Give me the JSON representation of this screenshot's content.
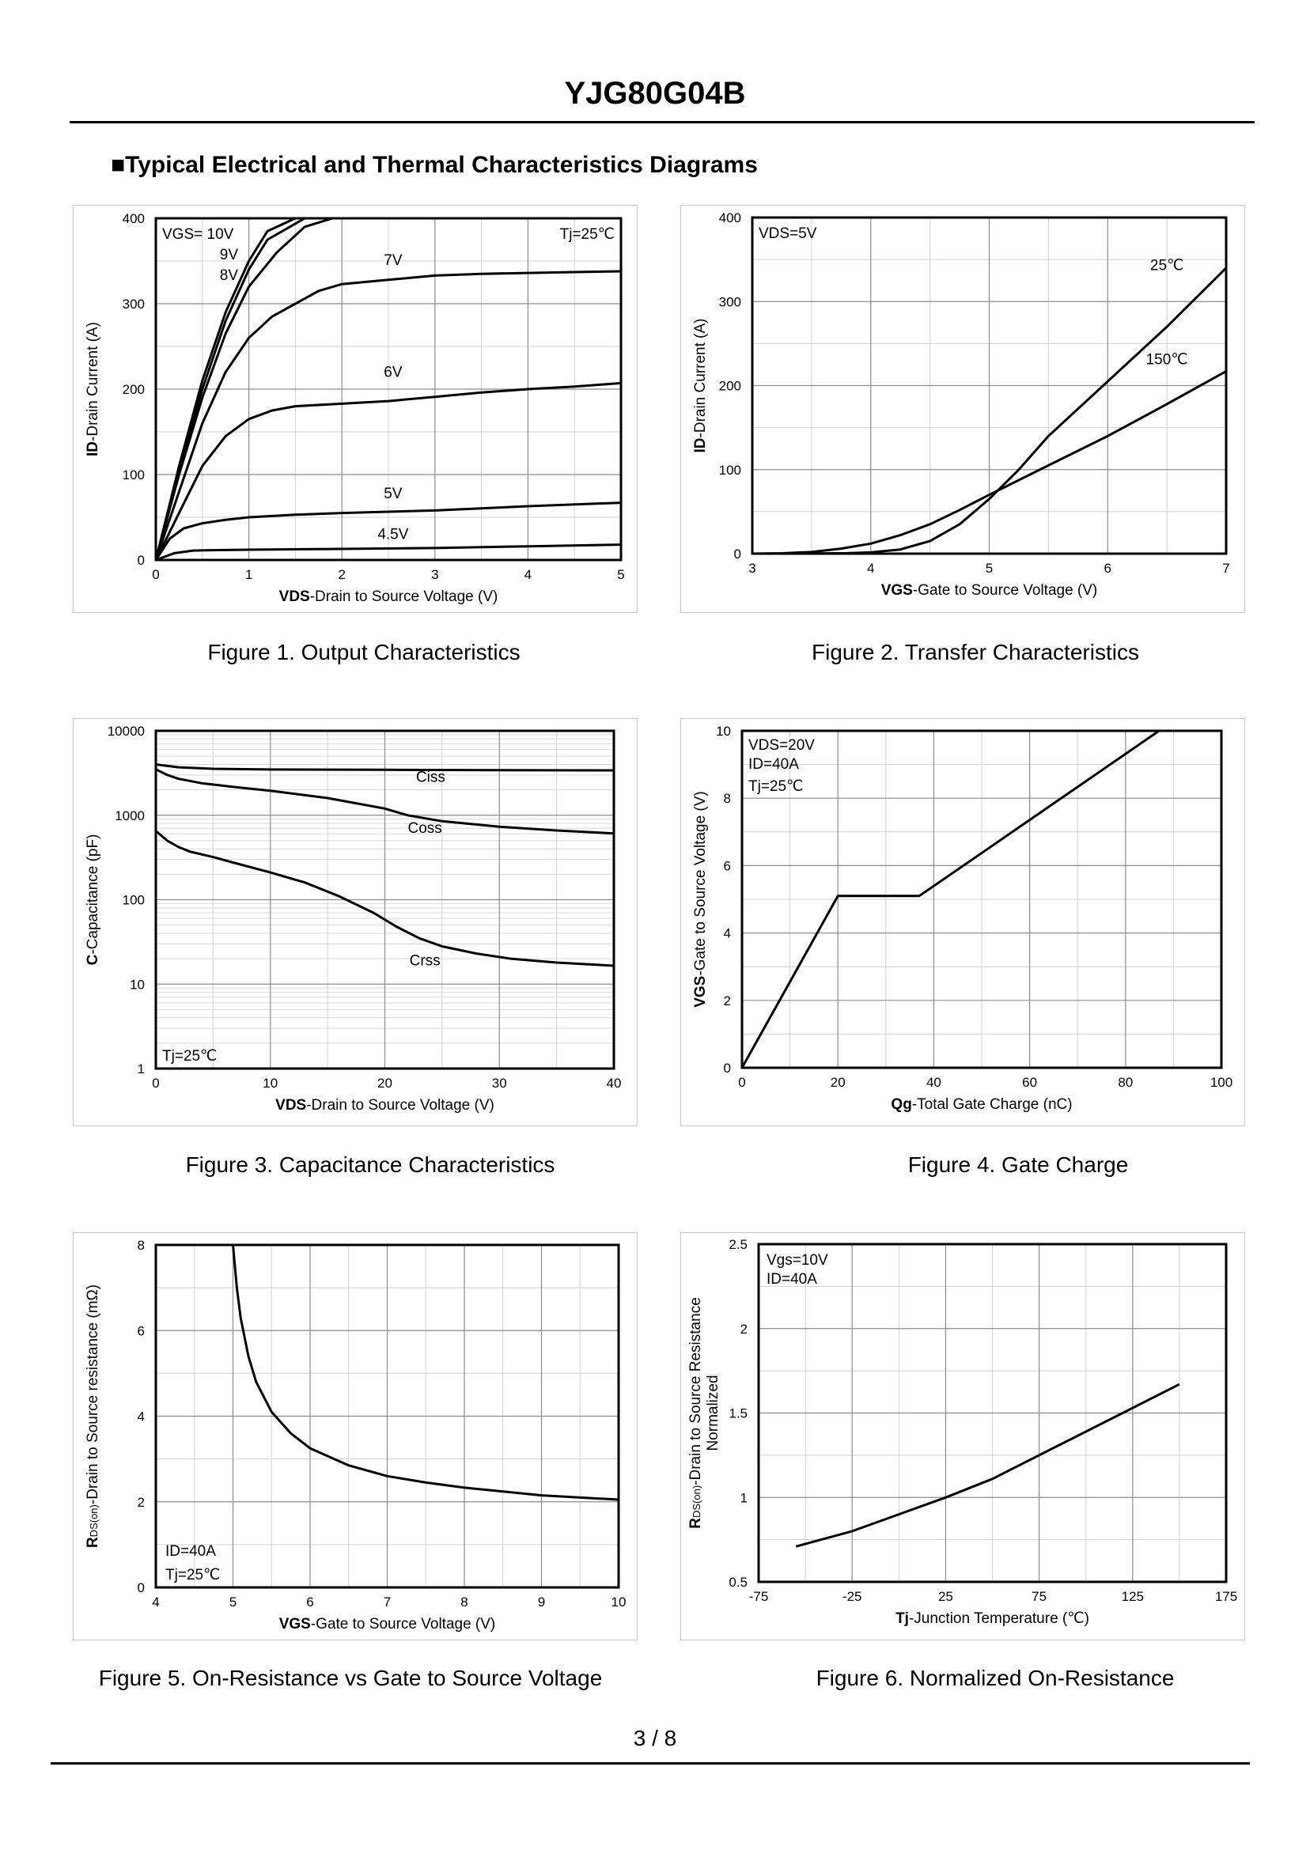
{
  "header": {
    "title": "YJG80G04B",
    "section": "■Typical Electrical and Thermal Characteristics Diagrams"
  },
  "footer": {
    "page": "3 / 8"
  },
  "chart_data": [
    {
      "id": "fig1",
      "type": "line",
      "scale": "linear",
      "caption": "Figure 1.  Output Characteristics",
      "xlabel_bold": "VDS",
      "xlabel_rest": "-Drain to Source Voltage (V)",
      "ylabel_bold": "ID",
      "ylabel_rest": "-Drain Current  (A)",
      "xlim": [
        0,
        5
      ],
      "ylim": [
        0,
        400
      ],
      "xticks": [
        0,
        1,
        2,
        3,
        4,
        5
      ],
      "yticks": [
        0,
        100,
        200,
        300,
        400
      ],
      "annotations": [
        "VGS= 10V",
        "9V",
        "8V",
        "Tj=25℃"
      ],
      "series": [
        {
          "name": "10V",
          "x": [
            0,
            0.25,
            0.5,
            0.75,
            1.0,
            1.2,
            1.5
          ],
          "y": [
            0,
            110,
            210,
            290,
            350,
            385,
            400
          ]
        },
        {
          "name": "9V",
          "x": [
            0,
            0.25,
            0.5,
            0.75,
            1.0,
            1.2,
            1.6
          ],
          "y": [
            0,
            105,
            200,
            280,
            340,
            375,
            400
          ]
        },
        {
          "name": "8V",
          "x": [
            0,
            0.25,
            0.5,
            0.75,
            1.0,
            1.3,
            1.6,
            1.9
          ],
          "y": [
            0,
            100,
            190,
            265,
            320,
            360,
            390,
            400
          ]
        },
        {
          "name": "7V",
          "label": "7V",
          "labelAt": [
            2.55,
            338
          ],
          "x": [
            0,
            0.25,
            0.5,
            0.75,
            1.0,
            1.25,
            1.5,
            1.75,
            2.0,
            2.5,
            3.0,
            3.5,
            4.0,
            4.5,
            5.0
          ],
          "y": [
            0,
            80,
            160,
            220,
            260,
            285,
            300,
            315,
            323,
            328,
            333,
            335,
            336,
            337,
            338
          ]
        },
        {
          "name": "6V",
          "label": "6V",
          "labelAt": [
            2.55,
            207
          ],
          "x": [
            0,
            0.25,
            0.5,
            0.75,
            1.0,
            1.25,
            1.5,
            2.0,
            2.5,
            3.0,
            3.5,
            4.0,
            4.5,
            5.0
          ],
          "y": [
            0,
            55,
            110,
            145,
            165,
            175,
            180,
            183,
            186,
            191,
            196,
            200,
            203,
            207
          ]
        },
        {
          "name": "5V",
          "label": "5V",
          "labelAt": [
            2.55,
            65
          ],
          "x": [
            0,
            0.15,
            0.3,
            0.5,
            0.75,
            1.0,
            1.5,
            2.0,
            3.0,
            4.0,
            5.0
          ],
          "y": [
            0,
            25,
            37,
            43,
            47,
            50,
            53,
            55,
            58,
            63,
            67
          ]
        },
        {
          "name": "4.5V",
          "label": "4.5V",
          "labelAt": [
            2.55,
            17
          ],
          "x": [
            0,
            0.2,
            0.4,
            0.6,
            1.0,
            2.0,
            3.0,
            4.0,
            5.0
          ],
          "y": [
            0,
            8,
            11,
            11.5,
            12,
            13,
            14,
            16,
            18
          ]
        }
      ]
    },
    {
      "id": "fig2",
      "type": "line",
      "scale": "linear",
      "caption": "Figure 2.  Transfer Characteristics",
      "xlabel_bold": "VGS",
      "xlabel_rest": "-Gate to Source Voltage (V)",
      "ylabel_bold": "ID",
      "ylabel_rest": "-Drain Current  (A)",
      "xlim": [
        3,
        7
      ],
      "ylim": [
        0,
        400
      ],
      "xticks": [
        3,
        4,
        5,
        6,
        7
      ],
      "yticks": [
        0,
        100,
        200,
        300,
        400
      ],
      "annotations": [
        "VDS=5V"
      ],
      "series": [
        {
          "name": "25℃",
          "label": "25℃",
          "labelAt": [
            6.5,
            330
          ],
          "x": [
            3,
            3.5,
            3.8,
            4.0,
            4.25,
            4.5,
            4.75,
            5.0,
            5.25,
            5.5,
            6.0,
            6.5,
            7.0
          ],
          "y": [
            0,
            0.2,
            0.6,
            1.5,
            5,
            15,
            35,
            65,
            100,
            140,
            205,
            270,
            340
          ]
        },
        {
          "name": "150℃",
          "label": "150℃",
          "labelAt": [
            6.5,
            218
          ],
          "x": [
            3,
            3.25,
            3.5,
            3.75,
            4.0,
            4.25,
            4.5,
            4.75,
            5.0,
            5.5,
            6.0,
            6.5,
            7.0
          ],
          "y": [
            0,
            0.5,
            2,
            6,
            12,
            22,
            35,
            52,
            70,
            105,
            140,
            178,
            217
          ]
        }
      ]
    },
    {
      "id": "fig3",
      "type": "line",
      "scale": "log-y",
      "caption": "Figure 3.  Capacitance Characteristics",
      "xlabel_bold": "VDS",
      "xlabel_rest": "-Drain to Source Voltage (V)",
      "ylabel_bold": "C",
      "ylabel_rest": "-Capacitance (pF)",
      "xlim": [
        0,
        40
      ],
      "ylim": [
        1,
        10000
      ],
      "xticks": [
        0,
        10,
        20,
        30,
        40
      ],
      "yticks": [
        1,
        10,
        100,
        1000,
        10000
      ],
      "annotations": [
        "Tj=25℃"
      ],
      "series": [
        {
          "name": "Ciss",
          "label": "Ciss",
          "labelAt": [
            24,
            2100
          ],
          "x": [
            0,
            2,
            5,
            10,
            20,
            30,
            40
          ],
          "y": [
            4000,
            3700,
            3550,
            3480,
            3450,
            3420,
            3400
          ]
        },
        {
          "name": "Coss",
          "label": "Coss",
          "labelAt": [
            23.5,
            520
          ],
          "x": [
            0,
            1,
            2,
            4,
            7,
            10,
            15,
            20,
            22,
            25,
            30,
            35,
            40
          ],
          "y": [
            3500,
            3000,
            2700,
            2400,
            2150,
            1950,
            1600,
            1200,
            1000,
            850,
            730,
            660,
            610
          ]
        },
        {
          "name": "Crss",
          "label": "Crss",
          "labelAt": [
            23.5,
            14
          ],
          "x": [
            0,
            1,
            2,
            3,
            5,
            7,
            10,
            13,
            16,
            19,
            21,
            23,
            25,
            28,
            31,
            35,
            40
          ],
          "y": [
            650,
            500,
            420,
            370,
            320,
            270,
            210,
            160,
            110,
            70,
            48,
            35,
            28,
            23,
            20,
            18,
            16.5
          ]
        }
      ]
    },
    {
      "id": "fig4",
      "type": "line",
      "scale": "linear",
      "caption": "Figure 4.  Gate Charge",
      "xlabel_bold": "Qg",
      "xlabel_rest": "-Total Gate Charge (nC)",
      "ylabel_bold": "VGS",
      "ylabel_rest": "-Gate to Source Voltage (V)",
      "xlim": [
        0,
        100
      ],
      "ylim": [
        0,
        10
      ],
      "xticks": [
        0,
        20,
        40,
        60,
        80,
        100
      ],
      "yticks": [
        0,
        2,
        4,
        6,
        8,
        10
      ],
      "annotations": [
        "VDS=20V",
        "ID=40A",
        "Tj=25℃"
      ],
      "series": [
        {
          "name": "VGS",
          "x": [
            0,
            20,
            37,
            87
          ],
          "y": [
            0,
            5.1,
            5.1,
            10
          ]
        }
      ]
    },
    {
      "id": "fig5",
      "type": "line",
      "scale": "linear",
      "caption": "Figure 5.  On-Resistance vs Gate to Source Voltage",
      "xlabel_bold": "VGS",
      "xlabel_rest": "-Gate to Source Voltage (V)",
      "ylabel_bold": "R",
      "ylabel_sub": "DS(on)",
      "ylabel_rest": "-Drain to Source resistance (mΩ)",
      "xlim": [
        4,
        10
      ],
      "ylim": [
        0,
        8
      ],
      "xticks": [
        4,
        5,
        6,
        7,
        8,
        9,
        10
      ],
      "yticks": [
        0,
        2,
        4,
        6,
        8
      ],
      "annotations": [
        "ID=40A",
        "Tj=25℃"
      ],
      "series": [
        {
          "name": "RDS(on)",
          "x": [
            5.0,
            5.05,
            5.1,
            5.2,
            5.3,
            5.5,
            5.75,
            6.0,
            6.5,
            7.0,
            7.5,
            8.0,
            9.0,
            10.0
          ],
          "y": [
            8.0,
            7.0,
            6.3,
            5.4,
            4.8,
            4.1,
            3.6,
            3.25,
            2.85,
            2.6,
            2.45,
            2.33,
            2.15,
            2.05
          ]
        }
      ]
    },
    {
      "id": "fig6",
      "type": "line",
      "scale": "linear",
      "caption": "Figure 6.  Normalized On-Resistance",
      "xlabel_bold": "Tj",
      "xlabel_rest": "-Junction  Temperature (℃)",
      "ylabel_bold": "R",
      "ylabel_sub": "DS(on)",
      "ylabel_rest": "-Drain to Source Resistance",
      "ylabel_line2": "Normalized",
      "xlim": [
        -75,
        175
      ],
      "ylim": [
        0.5,
        2.5
      ],
      "xticks": [
        -75,
        -25,
        25,
        75,
        125,
        175
      ],
      "yticks": [
        0.5,
        1,
        1.5,
        2,
        2.5
      ],
      "annotations": [
        "Vgs=10V",
        "ID=40A"
      ],
      "series": [
        {
          "name": "RDS(on) norm",
          "x": [
            -55,
            -25,
            0,
            25,
            50,
            75,
            100,
            125,
            150
          ],
          "y": [
            0.71,
            0.8,
            0.9,
            1.0,
            1.11,
            1.25,
            1.39,
            1.53,
            1.67
          ]
        }
      ]
    }
  ]
}
